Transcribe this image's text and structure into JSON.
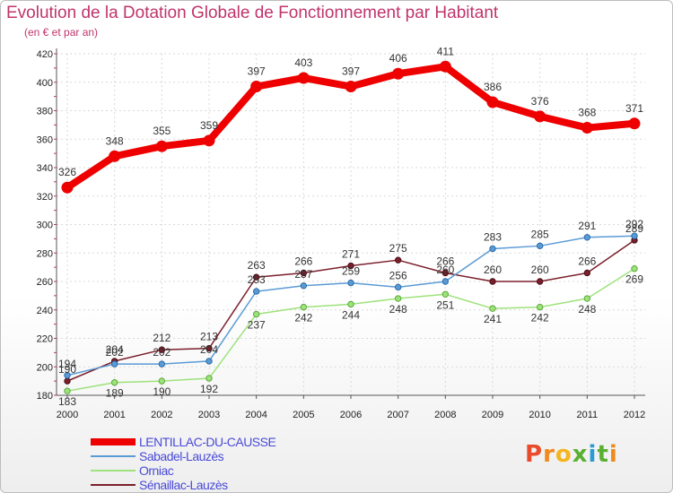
{
  "title": "Evolution de la Dotation Globale de Fonctionnement par Habitant",
  "subtitle": "(en € et par an)",
  "logo": {
    "text": "Proxiti",
    "letters": [
      {
        "ch": "P",
        "color": "#e94b2c"
      },
      {
        "ch": "r",
        "color": "#f08a1c"
      },
      {
        "ch": "o",
        "color": "#f5b51d"
      },
      {
        "ch": "x",
        "color": "#5ab031"
      },
      {
        "ch": "i",
        "color": "#2b9bd4"
      },
      {
        "ch": "t",
        "color": "#5ab031"
      },
      {
        "ch": "i",
        "color": "#f08a1c"
      }
    ]
  },
  "chart_data": {
    "type": "line",
    "x": [
      "2000",
      "2001",
      "2002",
      "2003",
      "2004",
      "2005",
      "2006",
      "2007",
      "2008",
      "2009",
      "2010",
      "2011",
      "2012"
    ],
    "ylim": [
      180,
      420
    ],
    "yticks": [
      180,
      200,
      220,
      240,
      260,
      280,
      300,
      320,
      340,
      360,
      380,
      400,
      420
    ],
    "grid": true,
    "legend": "bottom-left",
    "series": [
      {
        "name": "LENTILLAC-DU-CAUSSE",
        "color": "#ee0000",
        "values": [
          326,
          348,
          355,
          359,
          397,
          403,
          397,
          406,
          411,
          386,
          376,
          368,
          371
        ]
      },
      {
        "name": "Sabadel-Lauzès",
        "color": "#5b9bd5",
        "values": [
          194,
          202,
          202,
          204,
          253,
          257,
          259,
          256,
          260,
          283,
          285,
          291,
          292
        ]
      },
      {
        "name": "Orniac",
        "color": "#9ee27b",
        "values": [
          183,
          189,
          190,
          192,
          237,
          242,
          244,
          248,
          251,
          241,
          242,
          248,
          269
        ]
      },
      {
        "name": "Sénaillac-Lauzès",
        "color": "#7a1f2b",
        "values": [
          190,
          204,
          212,
          213,
          263,
          266,
          271,
          275,
          266,
          260,
          260,
          266,
          289
        ]
      }
    ]
  }
}
